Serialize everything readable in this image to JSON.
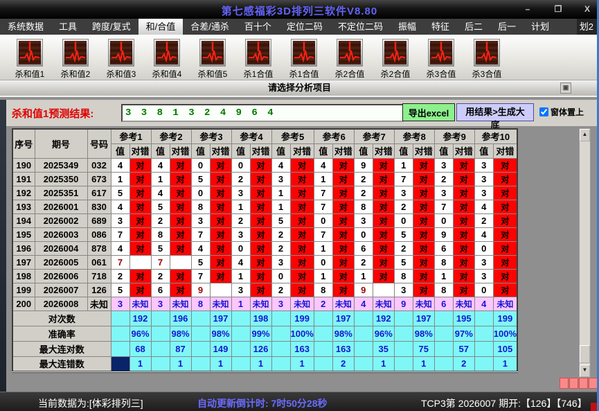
{
  "window": {
    "title": "第七感福彩3D排列三软件V8.80",
    "controls": {
      "minimize": "–",
      "maximize": "❐",
      "close": "X"
    }
  },
  "menu": {
    "items": [
      "系统数据",
      "工具",
      "跨度/复式",
      "和/合值",
      "合差/通杀",
      "百十个",
      "定位二码",
      "不定位二码",
      "振幅",
      "特征",
      "后二",
      "后一",
      "计划"
    ],
    "selected": "和/合值",
    "overflow_item": "划2"
  },
  "toolbar": {
    "buttons": [
      "杀和值1",
      "杀和值2",
      "杀和值3",
      "杀和值4",
      "杀和值5",
      "杀1合值",
      "杀1合值",
      "杀2合值",
      "杀2合值",
      "杀3合值",
      "杀3合值"
    ],
    "hint": "请选择分析项目"
  },
  "prediction": {
    "label": "杀和值1预测结果:",
    "value": "3 3 8 1 3 2 4 9 6 4",
    "export_button": "导出excel",
    "generate_button": "用结果>生成大底",
    "always_on_top": {
      "label": "窗体置上",
      "checked": true
    }
  },
  "table": {
    "fixed_headers": [
      "序号",
      "期号",
      "号码"
    ],
    "ref_headers": [
      "参考1",
      "参考2",
      "参考3",
      "参考4",
      "参考5",
      "参考6",
      "参考7",
      "参考8",
      "参考9",
      "参考10"
    ],
    "sub_headers": [
      "值",
      "对错"
    ],
    "mark_correct": "对",
    "mark_unknown": "未知",
    "rows": [
      {
        "seq": "190",
        "issue": "2025349",
        "num": "032",
        "values": [
          "4",
          "4",
          "0",
          "0",
          "4",
          "4",
          "9",
          "1",
          "3",
          "3"
        ],
        "marks": [
          "对",
          "对",
          "对",
          "对",
          "对",
          "对",
          "对",
          "对",
          "对",
          "对"
        ],
        "red": []
      },
      {
        "seq": "191",
        "issue": "2025350",
        "num": "673",
        "values": [
          "1",
          "1",
          "5",
          "2",
          "3",
          "1",
          "2",
          "7",
          "2",
          "3"
        ],
        "marks": [
          "对",
          "对",
          "对",
          "对",
          "对",
          "对",
          "对",
          "对",
          "对",
          "对"
        ],
        "red": []
      },
      {
        "seq": "192",
        "issue": "2025351",
        "num": "617",
        "values": [
          "5",
          "4",
          "0",
          "3",
          "1",
          "7",
          "2",
          "3",
          "3",
          "3"
        ],
        "marks": [
          "对",
          "对",
          "对",
          "对",
          "对",
          "对",
          "对",
          "对",
          "对",
          "对"
        ],
        "red": []
      },
      {
        "seq": "193",
        "issue": "2026001",
        "num": "830",
        "values": [
          "4",
          "5",
          "8",
          "1",
          "1",
          "7",
          "8",
          "2",
          "7",
          "4"
        ],
        "marks": [
          "对",
          "对",
          "对",
          "对",
          "对",
          "对",
          "对",
          "对",
          "对",
          "对"
        ],
        "red": []
      },
      {
        "seq": "194",
        "issue": "2026002",
        "num": "689",
        "values": [
          "3",
          "2",
          "3",
          "2",
          "5",
          "0",
          "3",
          "0",
          "0",
          "2"
        ],
        "marks": [
          "对",
          "对",
          "对",
          "对",
          "对",
          "对",
          "对",
          "对",
          "对",
          "对"
        ],
        "red": []
      },
      {
        "seq": "195",
        "issue": "2026003",
        "num": "086",
        "values": [
          "7",
          "8",
          "7",
          "3",
          "2",
          "7",
          "0",
          "5",
          "9",
          "4"
        ],
        "marks": [
          "对",
          "对",
          "对",
          "对",
          "对",
          "对",
          "对",
          "对",
          "对",
          "对"
        ],
        "red": []
      },
      {
        "seq": "196",
        "issue": "2026004",
        "num": "878",
        "values": [
          "4",
          "5",
          "4",
          "0",
          "2",
          "1",
          "6",
          "2",
          "6",
          "0"
        ],
        "marks": [
          "对",
          "对",
          "对",
          "对",
          "对",
          "对",
          "对",
          "对",
          "对",
          "对"
        ],
        "red": []
      },
      {
        "seq": "197",
        "issue": "2026005",
        "num": "061",
        "values": [
          "7",
          "7",
          "5",
          "4",
          "3",
          "0",
          "2",
          "5",
          "8",
          "3"
        ],
        "marks": [
          "",
          "",
          "对",
          "对",
          "对",
          "对",
          "对",
          "对",
          "对",
          "对"
        ],
        "red": [
          0,
          1
        ]
      },
      {
        "seq": "198",
        "issue": "2026006",
        "num": "718",
        "values": [
          "2",
          "2",
          "7",
          "1",
          "0",
          "1",
          "1",
          "8",
          "1",
          "3"
        ],
        "marks": [
          "对",
          "对",
          "对",
          "对",
          "对",
          "对",
          "对",
          "对",
          "对",
          "对"
        ],
        "red": []
      },
      {
        "seq": "199",
        "issue": "2026007",
        "num": "126",
        "values": [
          "5",
          "6",
          "9",
          "3",
          "2",
          "8",
          "9",
          "3",
          "8",
          "0"
        ],
        "marks": [
          "对",
          "对",
          "",
          "对",
          "对",
          "对",
          "",
          "对",
          "对",
          "对"
        ],
        "red": [
          2,
          6
        ]
      },
      {
        "seq": "200",
        "issue": "2026008",
        "num": "未知",
        "values": [
          "3",
          "3",
          "8",
          "1",
          "3",
          "2",
          "4",
          "9",
          "6",
          "4"
        ],
        "marks": [
          "未知",
          "未知",
          "未知",
          "未知",
          "未知",
          "未知",
          "未知",
          "未知",
          "未知",
          "未知"
        ],
        "red": [],
        "unknown": true
      }
    ],
    "summary": [
      {
        "label": "对次数",
        "values": [
          "192",
          "196",
          "197",
          "198",
          "199",
          "197",
          "192",
          "197",
          "195",
          "199"
        ]
      },
      {
        "label": "准确率",
        "values": [
          "96%",
          "98%",
          "98%",
          "99%",
          "100%",
          "98%",
          "96%",
          "98%",
          "97%",
          "100%"
        ]
      },
      {
        "label": "最大连对数",
        "values": [
          "68",
          "87",
          "149",
          "126",
          "163",
          "163",
          "35",
          "75",
          "57",
          "105"
        ]
      },
      {
        "label": "最大连错数",
        "values": [
          "1",
          "1",
          "1",
          "1",
          "1",
          "2",
          "1",
          "1",
          "2",
          "1"
        ],
        "selected_first_cell": true
      }
    ]
  },
  "status_bar": {
    "data_source": "当前数据为:[体彩排列三]",
    "countdown": "自动更新倒计时:  7时50分28秒",
    "latest": "TCP3第 2026007 期开:【126】【746】"
  },
  "colors": {
    "title_accent": "#6363f7",
    "hit_cell": "#fb0303",
    "unknown_bg": "#fdc6fd",
    "summary_bg": "#7ff7f7",
    "blue_text": "#1515d0",
    "miss_value": "#9c0000",
    "export_button_bg": "#8df08d",
    "generate_button_bg": "#ccccfa",
    "selected_cell": "#0a246a"
  }
}
